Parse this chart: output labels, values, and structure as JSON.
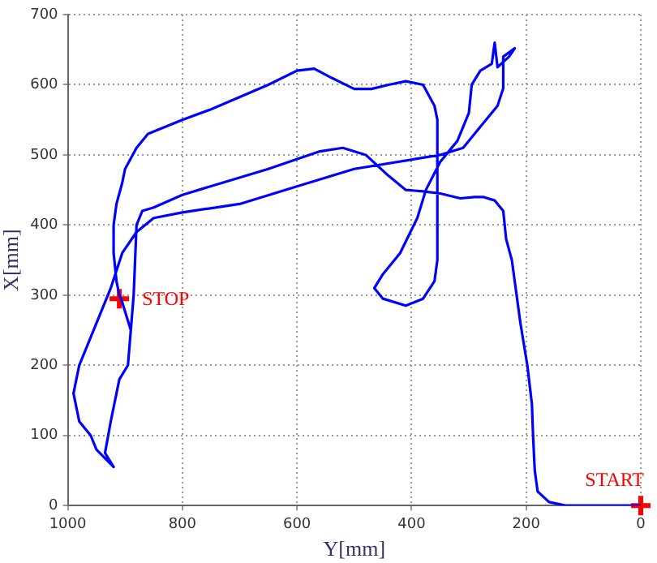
{
  "chart_data": {
    "type": "line",
    "xlabel": "Y[mm]",
    "ylabel": "X[mm]",
    "xlim": [
      1000,
      0
    ],
    "ylim": [
      0,
      700
    ],
    "xticks": [
      1000,
      800,
      600,
      400,
      200,
      0
    ],
    "yticks": [
      0,
      100,
      200,
      300,
      400,
      500,
      600,
      700
    ],
    "grid": true,
    "legend": false,
    "line_style": "solid",
    "marker": "none",
    "series": [
      {
        "color": "#0000ff",
        "x": [
          0,
          130,
          160,
          180,
          185,
          188,
          190,
          198,
          210,
          225,
          235,
          240,
          255,
          275,
          290,
          315,
          350,
          380,
          410,
          440,
          480,
          520,
          560,
          650,
          800,
          850,
          870,
          880,
          885,
          890,
          895,
          910,
          925,
          935,
          920,
          950,
          960,
          980,
          990,
          980,
          955,
          925,
          905,
          880,
          850,
          800,
          700,
          600,
          500,
          350,
          310,
          280,
          250,
          240,
          240,
          220,
          230,
          250,
          255,
          260,
          280,
          295,
          300,
          320,
          350,
          375,
          390,
          420,
          450,
          465,
          450,
          410,
          380,
          360,
          355,
          355,
          360,
          380,
          410,
          440,
          470,
          500,
          540,
          570,
          600,
          650,
          750,
          800,
          860,
          880,
          900,
          905,
          915,
          920,
          920,
          915,
          910,
          905,
          890
        ],
        "values": [
          0,
          0,
          5,
          20,
          50,
          100,
          145,
          200,
          260,
          350,
          380,
          420,
          435,
          440,
          440,
          438,
          445,
          448,
          450,
          470,
          500,
          510,
          505,
          480,
          443,
          425,
          420,
          400,
          300,
          250,
          200,
          180,
          120,
          75,
          55,
          80,
          100,
          120,
          160,
          200,
          250,
          310,
          360,
          390,
          410,
          418,
          430,
          455,
          480,
          500,
          510,
          540,
          570,
          595,
          640,
          652,
          640,
          625,
          660,
          630,
          620,
          600,
          560,
          520,
          490,
          450,
          410,
          360,
          330,
          310,
          295,
          285,
          295,
          320,
          350,
          550,
          570,
          600,
          605,
          600,
          594,
          594,
          610,
          623,
          620,
          600,
          565,
          550,
          530,
          510,
          480,
          460,
          430,
          400,
          360,
          320,
          300,
          290,
          250
        ]
      },
      {
        "type": "scatter",
        "color": "#ff0000",
        "marker": "cross",
        "x": [
          0,
          910
        ],
        "values": [
          0,
          295
        ]
      }
    ],
    "annotations": [
      {
        "text": "START",
        "x": 0,
        "y": 0
      },
      {
        "text": "STOP",
        "x": 910,
        "y": 295
      }
    ]
  }
}
